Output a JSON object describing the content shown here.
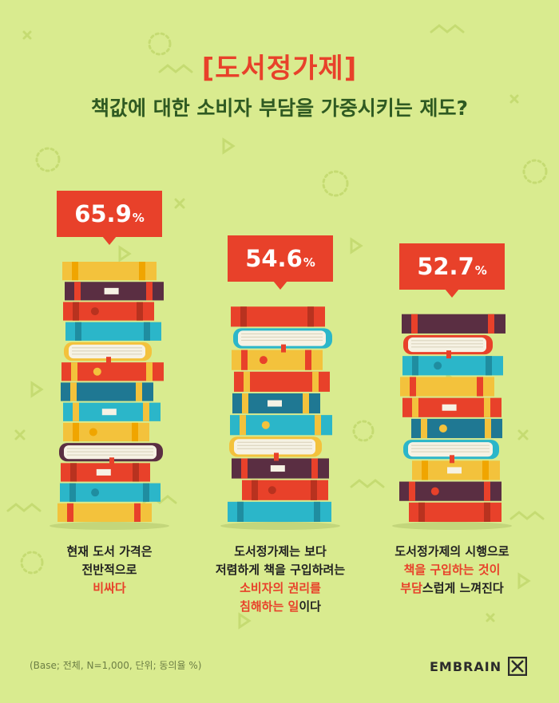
{
  "header": {
    "title": "[도서정가제]",
    "subtitle": "책값에 대한 소비자 부담을 가중시키는 제도?"
  },
  "chart_data": {
    "type": "bar",
    "title": "[도서정가제]",
    "subtitle": "책값에 대한 소비자 부담을 가중시키는 제도?",
    "unit": "%",
    "categories": [
      "현재 도서 가격은 전반적으로 비싸다",
      "도서정가제는 보다 저렴하게 책을 구입하려는 소비자의 권리를 침해하는 일이다",
      "도서정가제의 시행으로 책을 구입하는 것이 부담스럽게 느껴진다"
    ],
    "values": [
      65.9,
      54.6,
      52.7
    ],
    "value_labels": [
      "65.9",
      "54.6",
      "52.7"
    ],
    "pct_symbol": "%",
    "captions": [
      [
        {
          "text": "현재 도서 가격은",
          "hl": false
        },
        {
          "text": "전반적으로",
          "hl": false
        },
        [
          {
            "text": "비싸다",
            "hl": true
          }
        ]
      ],
      [
        {
          "text": "도서정가제는 보다",
          "hl": false
        },
        {
          "text": "저렴하게 책을 구입하려는",
          "hl": false
        },
        [
          {
            "text": "소비자의 권리를",
            "hl": true
          }
        ],
        [
          {
            "text": "침해하는 일",
            "hl": true
          },
          {
            "text": "이다",
            "hl": false
          }
        ]
      ],
      [
        {
          "text": "도서정가제의 시행으로",
          "hl": false
        },
        [
          {
            "text": "책을 구입하는 것이",
            "hl": true
          }
        ],
        [
          {
            "text": "부담",
            "hl": true
          },
          {
            "text": "스럽게 느껴진다",
            "hl": false
          }
        ]
      ]
    ]
  },
  "footer": {
    "base_note": "(Base; 전체, N=1,000, 단위; 동의율 %)",
    "logo_text": "EMBRAIN"
  },
  "colors": {
    "background": "#d9eb8f",
    "accent": "#e8412a",
    "subtitle": "#2f5a22"
  }
}
